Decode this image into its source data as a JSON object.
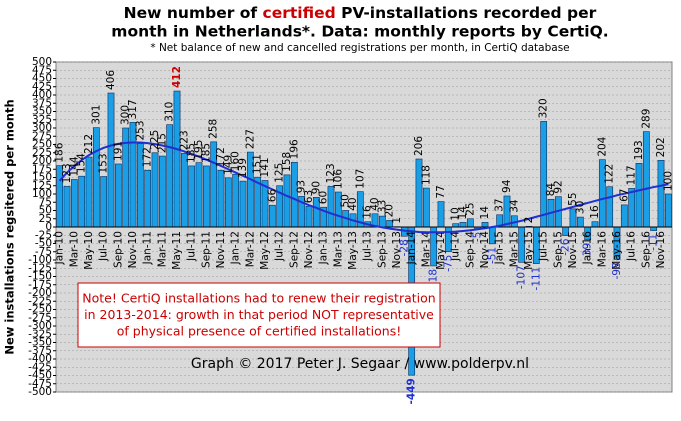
{
  "chart_data": {
    "type": "bar",
    "title_parts": [
      "New number of ",
      "certified",
      " PV-installations recorded per"
    ],
    "title_line2": "month in Netherlands*. Data: monthly reports by CertiQ.",
    "subtitle": "* Net balance of new and cancelled registrations per month, in CertiQ database",
    "y_label": "New installations regsitered per month",
    "note": [
      "Note! CertiQ installations had to renew their registration",
      "in 2013-2014: growth in that period NOT representative",
      "of physical presence of certified installations!"
    ],
    "credit": "Graph © 2017 Peter J. Segaar / www.polderpv.nl",
    "categories": [
      "Jan-10",
      null,
      "Mar-10",
      null,
      "May-10",
      null,
      "Jul-10",
      null,
      "Sep-10",
      null,
      "Nov-10",
      null,
      "Jan-11",
      null,
      "Mar-11",
      null,
      "May-11",
      null,
      "Jul-11",
      null,
      "Sep-11",
      null,
      "Nov-11",
      null,
      "Jan-12",
      null,
      "Mar-12",
      null,
      "May-12",
      null,
      "Jul-12",
      null,
      "Sep-12",
      null,
      "Nov-12",
      null,
      "Jan-13",
      null,
      "Mar-13",
      null,
      "May-13",
      null,
      "Jul-13",
      null,
      "Sep-13",
      null,
      "Nov-13",
      null,
      "Jan-14",
      null,
      "Mar-14",
      null,
      "May-14",
      null,
      "Jul-14",
      null,
      "Sep-14",
      null,
      "Nov-14",
      null,
      "Jan-15",
      null,
      "Mar-15",
      null,
      "May-15",
      null,
      "Jul-15",
      null,
      "Sep-15",
      null,
      "Nov-15",
      null,
      "Jan-16",
      null,
      "Mar-16",
      null,
      "May-16",
      null,
      "Jul-16",
      null,
      "Sep-16",
      null,
      "Nov-16",
      null
    ],
    "values": [
      186,
      123,
      144,
      154,
      212,
      301,
      153,
      406,
      191,
      300,
      317,
      253,
      172,
      225,
      215,
      310,
      412,
      223,
      185,
      195,
      185,
      258,
      172,
      149,
      160,
      139,
      227,
      151,
      141,
      66,
      125,
      158,
      196,
      93,
      63,
      90,
      60,
      123,
      106,
      50,
      40,
      107,
      16,
      40,
      33,
      20,
      1,
      -28,
      -449,
      206,
      118,
      -118,
      77,
      -75,
      10,
      14,
      25,
      -5,
      14,
      -51,
      37,
      94,
      34,
      -107,
      2,
      -111,
      320,
      84,
      92,
      -26,
      55,
      30,
      -39,
      16,
      204,
      122,
      -98,
      67,
      117,
      193,
      289,
      -11,
      202,
      100
    ],
    "trend": {
      "color": "#1f2fd0",
      "values": [
        140,
        165,
        185,
        203,
        218,
        230,
        240,
        247,
        252,
        255,
        256,
        256,
        254,
        251,
        247,
        242,
        236,
        229,
        221,
        213,
        204,
        195,
        185,
        175,
        165,
        155,
        145,
        134,
        124,
        114,
        104,
        94,
        85,
        75,
        66,
        58,
        49,
        41,
        34,
        27,
        20,
        14,
        8,
        3,
        -1,
        -5,
        -8,
        -11,
        -13,
        -15,
        -16,
        -16,
        -16,
        -15,
        -14,
        -12,
        -10,
        -7,
        -4,
        0,
        4,
        9,
        14,
        19,
        25,
        31,
        37,
        43,
        49,
        55,
        61,
        67,
        73,
        79,
        85,
        90,
        96,
        101,
        106,
        111,
        116,
        121,
        125,
        130
      ]
    },
    "color": "#1a9fe6",
    "edge_color": "#0a2a5a",
    "label_color": "#000000",
    "negative_label_color": "#1f2fd0",
    "max_label_color": "#cc0000",
    "ylim": [
      -500,
      500
    ],
    "yticks": [
      500,
      475,
      450,
      425,
      400,
      375,
      350,
      325,
      300,
      275,
      250,
      225,
      200,
      175,
      150,
      125,
      100,
      75,
      50,
      25,
      0,
      -25,
      -50,
      -75,
      -100,
      -125,
      -150,
      -175,
      -200,
      -225,
      -250,
      -275,
      -300,
      -325,
      -350,
      -375,
      -400,
      -425,
      -450,
      -475,
      -500
    ],
    "grid": true
  }
}
